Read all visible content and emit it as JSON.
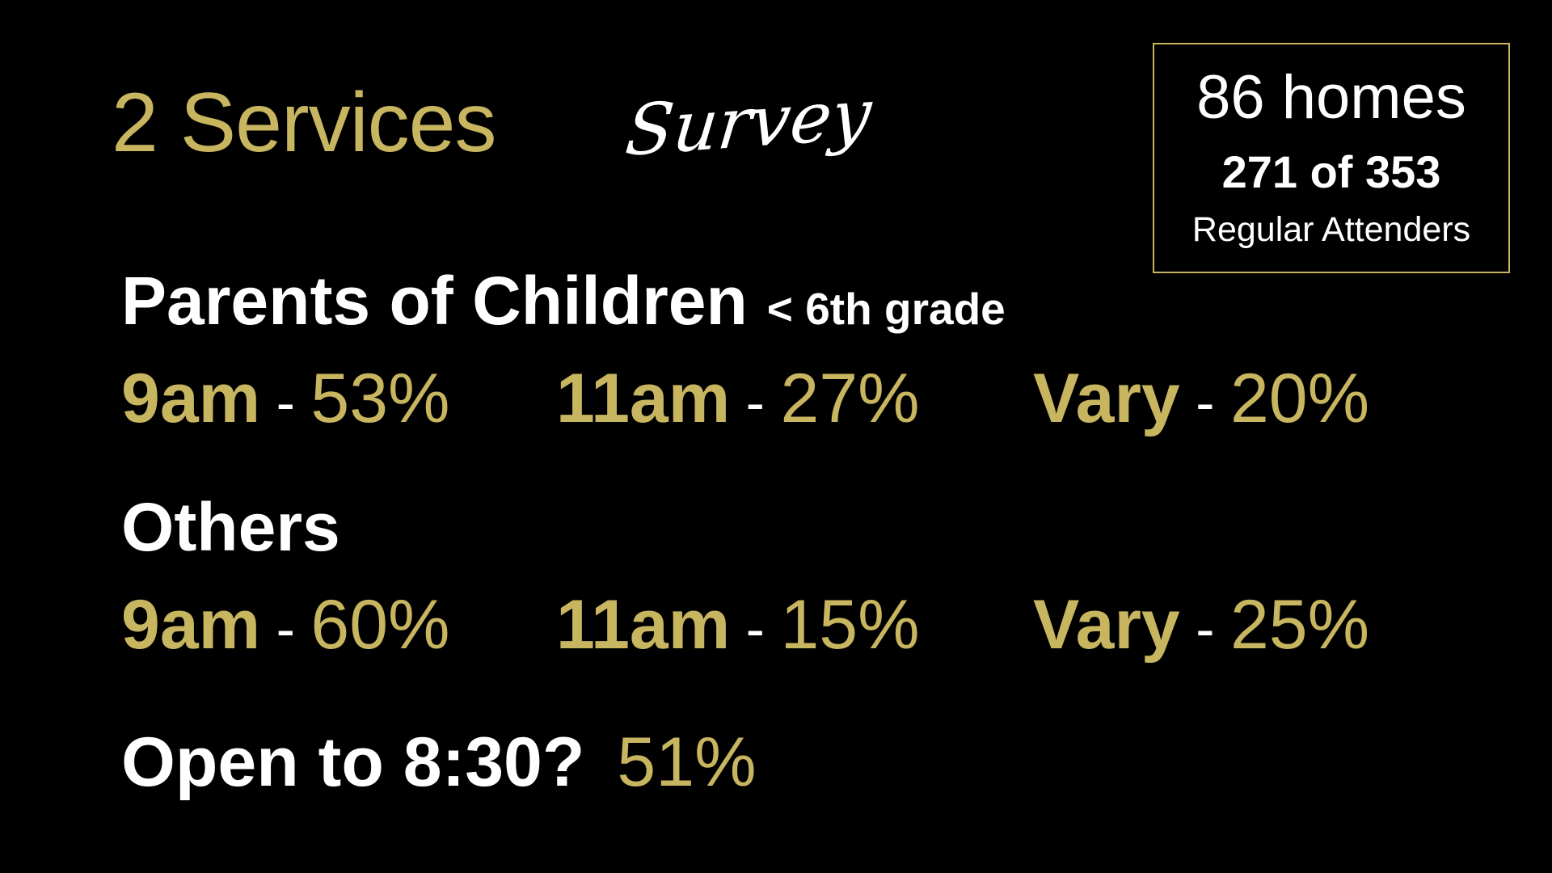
{
  "title": {
    "main": "2 Services",
    "script": "Survey"
  },
  "stats_box": {
    "homes": "86 homes",
    "count": "271 of 353",
    "label": "Regular Attenders"
  },
  "parents": {
    "heading": "Parents of Children",
    "subheading": "< 6th grade",
    "items": [
      {
        "label": "9am",
        "sep": " - ",
        "value": "53%"
      },
      {
        "label": "11am",
        "sep": " - ",
        "value": "27%"
      },
      {
        "label": "Vary",
        "sep": " - ",
        "value": "20%"
      }
    ]
  },
  "others": {
    "heading": "Others",
    "items": [
      {
        "label": "9am",
        "sep": " - ",
        "value": "60%"
      },
      {
        "label": "11am",
        "sep": " - ",
        "value": "15%"
      },
      {
        "label": "Vary",
        "sep": " - ",
        "value": "25%"
      }
    ]
  },
  "open": {
    "question": "Open to 8:30?",
    "value": "51%"
  },
  "colors": {
    "background": "#000000",
    "gold": "#c8b560",
    "text": "#ffffff"
  }
}
